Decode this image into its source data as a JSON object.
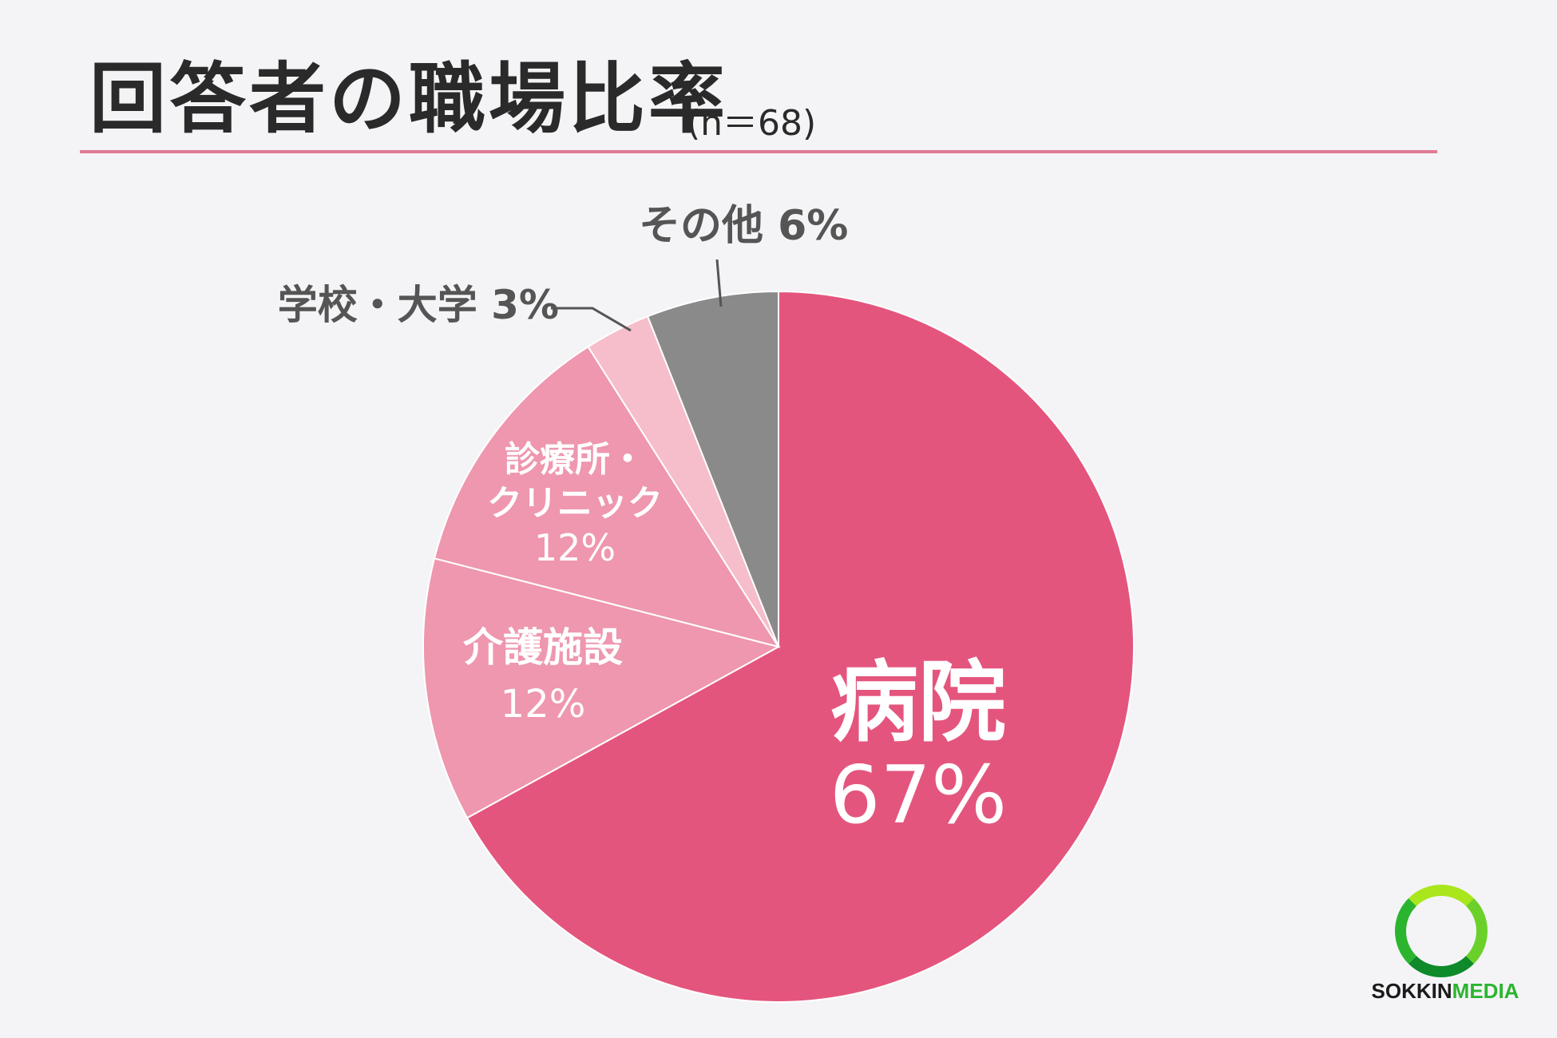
{
  "title": "回答者の職場比率",
  "subtitle": "(n＝68)",
  "colors": {
    "background": "#f4f4f7",
    "rule": "#e07a95",
    "label_dark": "#555555"
  },
  "chart_data": {
    "type": "pie",
    "start_angle_deg": 0,
    "direction": "clockwise",
    "slices": [
      {
        "label": "病院",
        "value": 67,
        "value_label": "67%",
        "color": "#e4557d"
      },
      {
        "label": "介護施設",
        "value": 12,
        "value_label": "12%",
        "color": "#ee97ae"
      },
      {
        "label": "診療所・クリニック",
        "value": 12,
        "value_label": "12%",
        "color": "#ee97ae"
      },
      {
        "label": "学校・大学",
        "value": 3,
        "value_label": "3%",
        "color": "#f6bdca"
      },
      {
        "label": "その他",
        "value": 6,
        "value_label": "6%",
        "color": "#8a8a8a"
      }
    ]
  },
  "labels": {
    "hospital": {
      "name": "病院",
      "pct": "67%"
    },
    "care": {
      "name": "介護施設",
      "pct": "12%"
    },
    "clinic": {
      "line1": "診療所・",
      "line2": "クリニック",
      "pct": "12%"
    },
    "school": {
      "text": "学校・大学  3%"
    },
    "other": {
      "text": "その他 6%"
    }
  },
  "logo": {
    "text_a": "SOKKIN",
    "text_b": "MEDIA",
    "ring_icon": "ring-logo-icon"
  }
}
